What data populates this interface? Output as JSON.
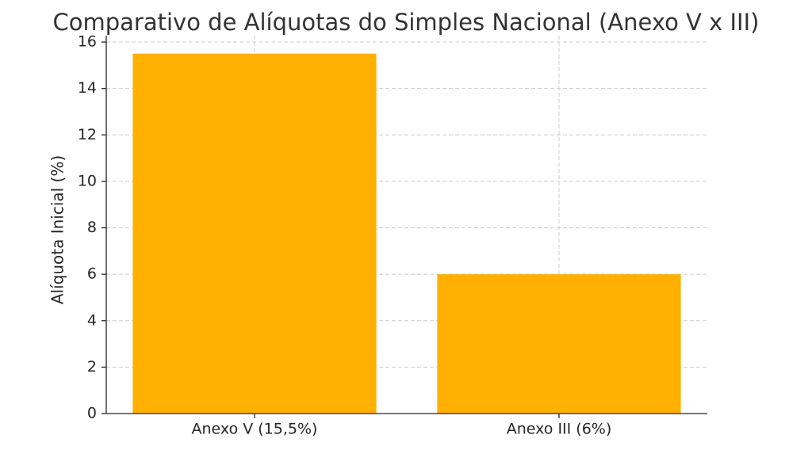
{
  "chart_data": {
    "type": "bar",
    "title": "Comparativo de Alíquotas do Simples Nacional (Anexo V x III)",
    "y_label": "Alíquota Inicial (%)",
    "categories": [
      "Anexo V (15,5%)",
      "Anexo III (6%)"
    ],
    "values": [
      15.5,
      6
    ],
    "color": "#ffb000",
    "ylim": [
      0,
      16.275
    ],
    "yticks": [
      0,
      2,
      4,
      6,
      8,
      10,
      12,
      14,
      16
    ],
    "grid": true
  }
}
